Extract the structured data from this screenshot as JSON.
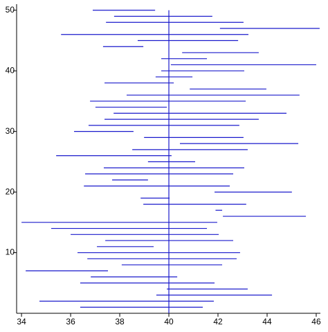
{
  "chart_data": {
    "type": "interval",
    "color": "#1a1acc",
    "reference_x": 40,
    "y": [
      1,
      2,
      3,
      4,
      5,
      6,
      7,
      8,
      9,
      10,
      11,
      12,
      13,
      14,
      15,
      16,
      17,
      18,
      19,
      20,
      21,
      22,
      23,
      24,
      25,
      26,
      27,
      28,
      29,
      30,
      31,
      32,
      33,
      34,
      35,
      36,
      37,
      38,
      39,
      40,
      41,
      42,
      43,
      44,
      45,
      46,
      47,
      48,
      49,
      50
    ],
    "low": [
      36.39,
      34.73,
      39.49,
      39.92,
      36.39,
      36.82,
      34.17,
      38.08,
      36.68,
      36.28,
      37.07,
      37.41,
      36.0,
      35.21,
      34.0,
      42.2,
      41.9,
      38.96,
      38.85,
      41.86,
      36.54,
      37.69,
      36.59,
      37.35,
      39.15,
      35.41,
      38.51,
      40.45,
      38.99,
      36.14,
      36.73,
      37.38,
      37.75,
      37.01,
      36.79,
      38.28,
      40.85,
      37.38,
      39.46,
      39.69,
      40.08,
      39.69,
      40.54,
      37.32,
      38.73,
      35.61,
      42.08,
      37.44,
      37.77,
      36.9
    ],
    "high": [
      41.38,
      41.83,
      44.2,
      43.21,
      41.86,
      40.34,
      37.52,
      42.17,
      42.76,
      42.9,
      39.38,
      42.62,
      42.03,
      41.55,
      41.97,
      45.58,
      42.17,
      43.15,
      40.03,
      45.01,
      42.48,
      39.15,
      42.62,
      43.07,
      41.07,
      40.11,
      43.21,
      45.27,
      43.04,
      38.56,
      42.87,
      43.66,
      44.79,
      39.92,
      43.13,
      45.32,
      43.97,
      40.2,
      40.96,
      43.07,
      46.0,
      41.55,
      43.66,
      38.96,
      42.82,
      43.24,
      46.14,
      43.04,
      41.77,
      39.44
    ],
    "xlim": [
      33.8,
      46.17
    ],
    "xticks": [
      34,
      36,
      38,
      40,
      42,
      44,
      46
    ],
    "ylim": [
      0,
      51
    ],
    "yticks": [
      10,
      20,
      30,
      40,
      50
    ]
  }
}
